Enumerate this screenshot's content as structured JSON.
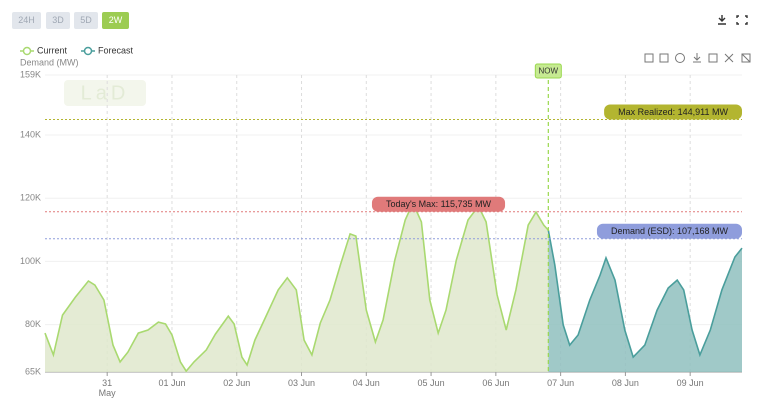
{
  "buttons": [
    "24H",
    "3D",
    "5D",
    "2W"
  ],
  "active_button": 3,
  "chart_data": {
    "type": "area",
    "y_label": "Demand (MW)",
    "logo": "LaD",
    "legend": "top-left",
    "grid": true,
    "xlim": [
      -0.96,
      9.8
    ],
    "xticks": [
      {
        "value": 0,
        "label": "31 May"
      },
      {
        "value": 1,
        "label": "01 Jun"
      },
      {
        "value": 2,
        "label": "02 Jun"
      },
      {
        "value": 3,
        "label": "03 Jun"
      },
      {
        "value": 4,
        "label": "04 Jun"
      },
      {
        "value": 5,
        "label": "05 Jun"
      },
      {
        "value": 6,
        "label": "06 Jun"
      },
      {
        "value": 7,
        "label": "07 Jun"
      },
      {
        "value": 8,
        "label": "08 Jun"
      },
      {
        "value": 9,
        "label": "09 Jun"
      }
    ],
    "ylim": [
      65000,
      159000
    ],
    "yticks": [
      {
        "value": 65000,
        "label": "65K"
      },
      {
        "value": 80000,
        "label": "80K"
      },
      {
        "value": 100000,
        "label": "100K"
      },
      {
        "value": 120000,
        "label": "120K"
      },
      {
        "value": 140000,
        "label": "140K"
      },
      {
        "value": 159000,
        "label": "159K"
      }
    ],
    "series": [
      {
        "name": "Current",
        "color": "#a9d970",
        "fill": "#dfe7cc",
        "x": [
          -0.96,
          -0.83,
          -0.69,
          -0.49,
          -0.29,
          -0.19,
          -0.05,
          0.09,
          0.2,
          0.32,
          0.48,
          0.63,
          0.79,
          0.9,
          1.0,
          1.13,
          1.22,
          1.34,
          1.53,
          1.67,
          1.87,
          1.96,
          2.08,
          2.16,
          2.28,
          2.44,
          2.64,
          2.78,
          2.92,
          3.04,
          3.16,
          3.29,
          3.44,
          3.6,
          3.75,
          3.84,
          4.0,
          4.14,
          4.26,
          4.44,
          4.6,
          4.72,
          4.85,
          4.98,
          5.11,
          5.23,
          5.39,
          5.57,
          5.73,
          5.85,
          6.02,
          6.16,
          6.31,
          6.5,
          6.62,
          6.74,
          6.81
        ],
        "values": [
          77300,
          70400,
          83000,
          88700,
          93800,
          92500,
          87800,
          73500,
          68200,
          71300,
          77300,
          78300,
          80800,
          80200,
          76700,
          68200,
          65300,
          68200,
          72000,
          77000,
          82700,
          80200,
          69700,
          67200,
          75100,
          82100,
          91000,
          94800,
          91000,
          75100,
          70400,
          80500,
          87800,
          98900,
          108700,
          108000,
          84600,
          74500,
          81500,
          100400,
          113100,
          118500,
          112500,
          87800,
          77300,
          84600,
          100400,
          113100,
          117500,
          112500,
          89400,
          78300,
          91000,
          111500,
          115600,
          111500,
          109900
        ]
      },
      {
        "name": "Forecast",
        "color": "#4a9e9c",
        "fill": "#8fc0be",
        "x": [
          6.81,
          6.91,
          7.04,
          7.14,
          7.27,
          7.45,
          7.61,
          7.7,
          7.84,
          7.99,
          8.12,
          8.3,
          8.49,
          8.66,
          8.8,
          8.9,
          9.03,
          9.15,
          9.31,
          9.49,
          9.69,
          9.8
        ],
        "values": [
          109900,
          98900,
          79900,
          73500,
          76700,
          87800,
          95700,
          101100,
          94100,
          78300,
          69700,
          73500,
          84600,
          91600,
          94100,
          91000,
          78300,
          70400,
          78300,
          91000,
          101400,
          104200
        ]
      }
    ],
    "hlines": [
      {
        "label": "Max Realized: 144,911 MW",
        "value": 144911,
        "color": "#b3b530",
        "label_position": "right"
      },
      {
        "label": "Today's Max: 115,735 MW",
        "value": 115735,
        "color": "#e07a7a",
        "label_position": "center"
      },
      {
        "label": "Demand (ESD): 107,168 MW",
        "value": 107168,
        "color": "#8f9ddc",
        "label_position": "right"
      }
    ],
    "vline": {
      "label": "NOW",
      "x": 6.81,
      "color": "#9ad84e"
    }
  }
}
